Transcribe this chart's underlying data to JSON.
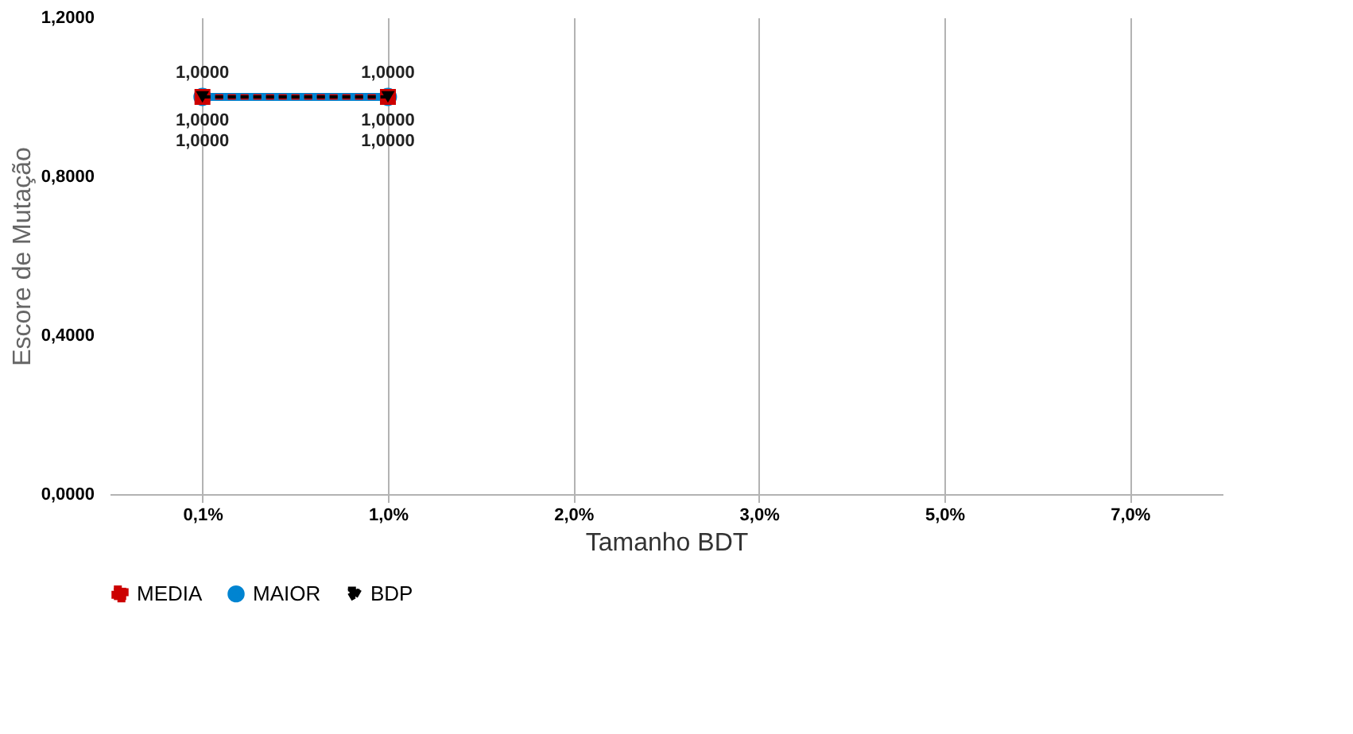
{
  "chart_data": {
    "type": "line",
    "xlabel": "Tamanho BDT",
    "ylabel": "Escore de Mutação",
    "categories": [
      "0,1%",
      "1,0%",
      "2,0%",
      "3,0%",
      "5,0%",
      "7,0%"
    ],
    "ylim": [
      0,
      1.2
    ],
    "yticks": [
      {
        "value": 0,
        "label": "0,0000"
      },
      {
        "value": 0.4,
        "label": "0,4000"
      },
      {
        "value": 0.8,
        "label": "0,8000"
      },
      {
        "value": 1.2,
        "label": "1,2000"
      }
    ],
    "grid": "x",
    "legend": "bottom",
    "series": [
      {
        "name": "MEDIA",
        "color": "#cc0000",
        "marker": "square",
        "line_style": "dashed",
        "values": [
          1.0,
          1.0,
          null,
          null,
          null,
          null
        ],
        "value_labels": [
          "1,0000",
          "1,0000",
          null,
          null,
          null,
          null
        ]
      },
      {
        "name": "MAIOR",
        "color": "#0084d1",
        "marker": "circle",
        "line_style": "solid",
        "values": [
          1.0,
          1.0,
          null,
          null,
          null,
          null
        ],
        "value_labels": [
          "1,0000",
          "1,0000",
          null,
          null,
          null,
          null
        ]
      },
      {
        "name": "BDP",
        "color": "#000000",
        "marker": "triangle",
        "line_style": "dashed",
        "values": [
          1.0,
          1.0,
          null,
          null,
          null,
          null
        ],
        "value_labels": [
          "1,0000",
          "1,0000",
          null,
          null,
          null,
          null
        ]
      }
    ]
  }
}
